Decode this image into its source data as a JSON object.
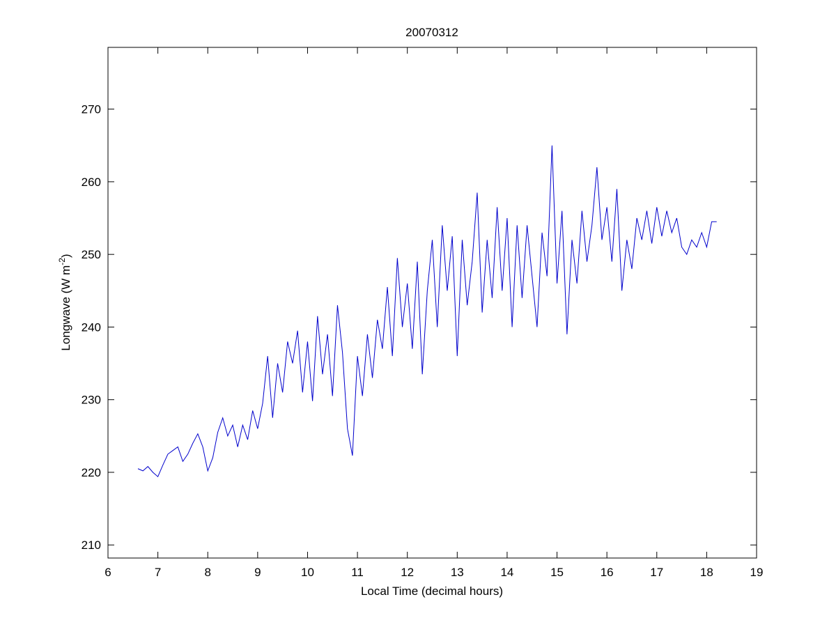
{
  "chart_data": {
    "type": "line",
    "title": "20070312",
    "x_label": "Local Time (decimal hours)",
    "y_label": [
      "Longwave (W m",
      "-2",
      ")"
    ],
    "x": [
      6.6,
      6.7,
      6.8,
      6.9,
      7.0,
      7.1,
      7.2,
      7.3,
      7.4,
      7.5,
      7.6,
      7.7,
      7.8,
      7.9,
      8.0,
      8.1,
      8.2,
      8.3,
      8.4,
      8.5,
      8.6,
      8.7,
      8.8,
      8.9,
      9.0,
      9.1,
      9.2,
      9.3,
      9.4,
      9.5,
      9.6,
      9.7,
      9.8,
      9.9,
      10.0,
      10.1,
      10.2,
      10.3,
      10.4,
      10.5,
      10.6,
      10.7,
      10.8,
      10.9,
      11.0,
      11.1,
      11.2,
      11.3,
      11.4,
      11.5,
      11.6,
      11.7,
      11.8,
      11.9,
      12.0,
      12.1,
      12.2,
      12.3,
      12.4,
      12.5,
      12.6,
      12.7,
      12.8,
      12.9,
      13.0,
      13.1,
      13.2,
      13.3,
      13.4,
      13.5,
      13.6,
      13.7,
      13.8,
      13.9,
      14.0,
      14.1,
      14.2,
      14.3,
      14.4,
      14.5,
      14.6,
      14.7,
      14.8,
      14.9,
      15.0,
      15.1,
      15.2,
      15.3,
      15.4,
      15.5,
      15.6,
      15.7,
      15.8,
      15.9,
      16.0,
      16.1,
      16.2,
      16.3,
      16.4,
      16.5,
      16.6,
      16.7,
      16.8,
      16.9,
      17.0,
      17.1,
      17.2,
      17.3,
      17.4,
      17.5,
      17.6,
      17.7,
      17.8,
      17.9,
      18.0,
      18.1,
      18.2
    ],
    "series": [
      {
        "color": "#0000cc",
        "values": [
          220.5,
          220.2,
          220.8,
          220,
          219.4,
          221,
          222.5,
          223,
          223.5,
          221.5,
          222.5,
          224,
          225.3,
          223.5,
          220.2,
          222,
          225.5,
          227.5,
          225,
          226.5,
          223.5,
          226.5,
          224.5,
          228.5,
          226,
          229.5,
          236,
          227.5,
          235,
          231,
          238,
          235,
          239.5,
          231,
          238,
          229.8,
          241.5,
          233.5,
          239,
          230.5,
          243,
          236.5,
          226,
          222.3,
          236,
          230.5,
          239,
          233,
          241,
          237,
          245.5,
          236,
          249.5,
          240,
          246,
          237,
          249,
          233.5,
          245,
          252,
          240,
          254,
          245,
          252.5,
          236,
          252,
          243,
          249,
          258.5,
          242,
          252,
          244,
          256.5,
          245,
          255,
          240,
          254,
          244,
          254,
          247,
          240,
          253,
          247,
          265,
          246,
          256,
          239,
          252,
          246,
          256,
          249,
          254,
          262,
          252,
          256.5,
          249,
          259,
          245,
          252,
          248,
          255,
          252,
          256,
          251.5,
          256.5,
          252.5,
          256,
          253,
          255,
          251,
          250,
          252,
          251,
          253,
          251,
          254.5,
          254.5
        ]
      }
    ],
    "xlim": [
      6,
      19
    ],
    "xticks": [
      6,
      7,
      8,
      9,
      10,
      11,
      12,
      13,
      14,
      15,
      16,
      17,
      18,
      19
    ],
    "ylim": [
      208.2,
      278.5
    ],
    "yticks": [
      210,
      220,
      230,
      240,
      250,
      260,
      270
    ]
  }
}
